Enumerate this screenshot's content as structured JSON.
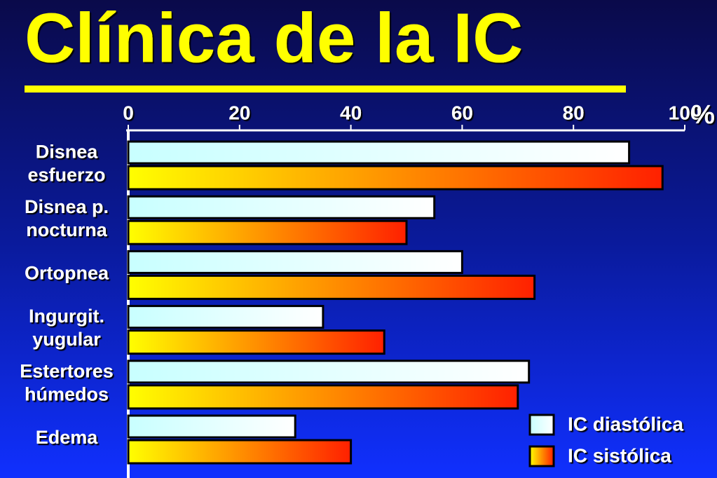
{
  "chart_data": {
    "type": "bar",
    "orientation": "horizontal",
    "title": "Clínica de la IC",
    "x_label": "%",
    "categories": [
      [
        "Disnea",
        "esfuerzo"
      ],
      [
        "Disnea p.",
        "nocturna"
      ],
      [
        "Ortopnea"
      ],
      [
        "Ingurgit.",
        "yugular"
      ],
      [
        "Estertores",
        "húmedos"
      ],
      [
        "Edema"
      ]
    ],
    "series": [
      {
        "name": "IC diastólica",
        "color": "#c8ffff",
        "color_end": "#ffffff",
        "values": [
          90,
          55,
          60,
          35,
          72,
          30
        ]
      },
      {
        "name": "IC sistólica",
        "color": "#ffff00",
        "color_end": "#ff2000",
        "values": [
          96,
          50,
          73,
          46,
          70,
          40
        ]
      }
    ],
    "xlim": [
      0,
      100
    ],
    "xticks": [
      0,
      20,
      40,
      60,
      80,
      100
    ],
    "legend": "lower right"
  }
}
